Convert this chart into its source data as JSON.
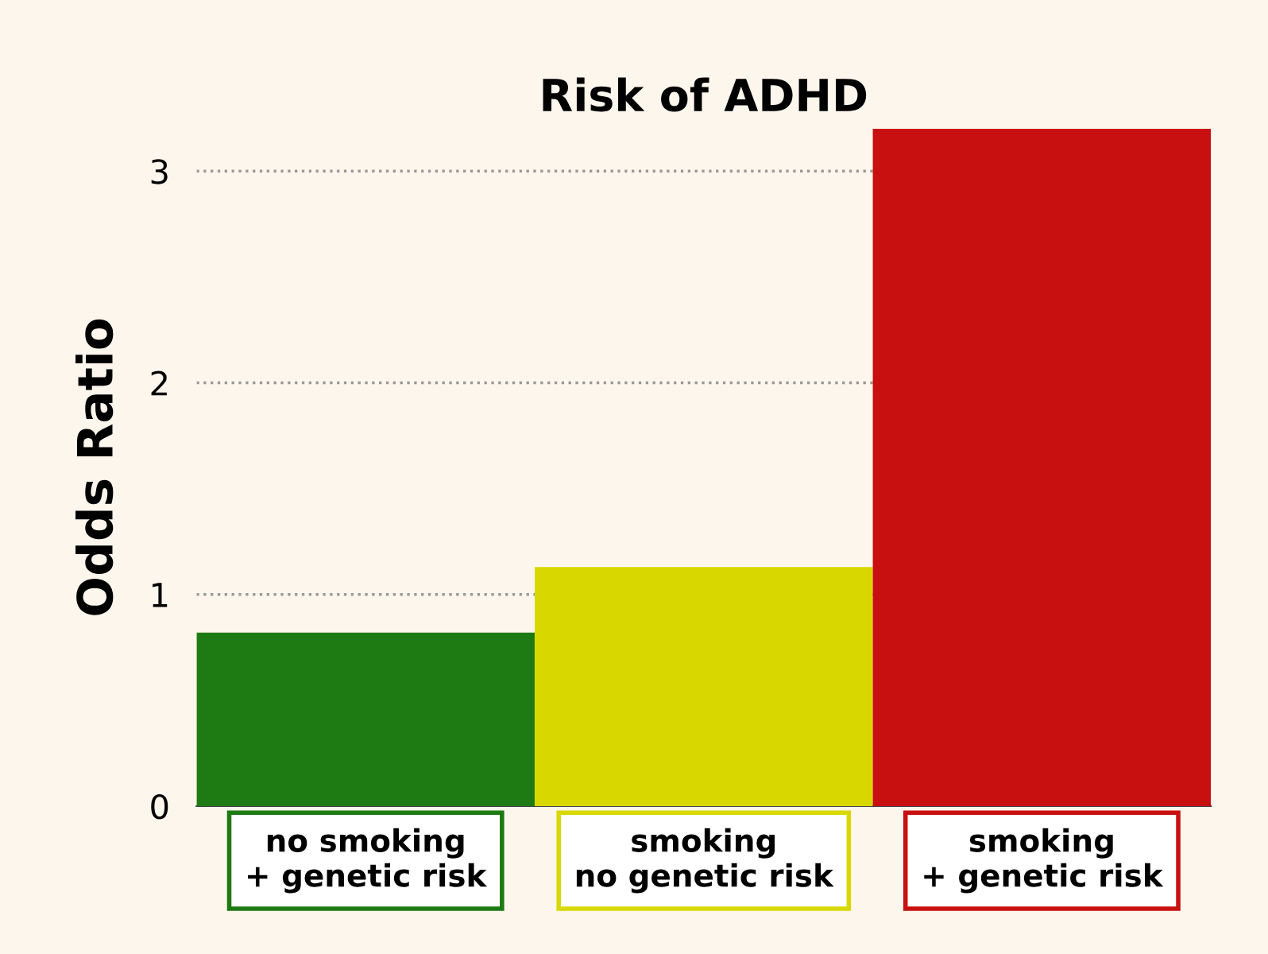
{
  "chart_data": {
    "type": "bar",
    "title": "Risk of ADHD",
    "ylabel": "Odds Ratio",
    "categories": [
      "no smoking\n+ genetic risk",
      "smoking\nno genetic risk",
      "smoking\n+ genetic risk"
    ],
    "values": [
      0.82,
      1.13,
      3.2
    ],
    "colors": [
      "#1e7a12",
      "#d8d800",
      "#c81010"
    ],
    "ylim": [
      0,
      3.2
    ],
    "yticks": [
      0,
      1,
      2,
      3
    ],
    "grid": "y"
  }
}
